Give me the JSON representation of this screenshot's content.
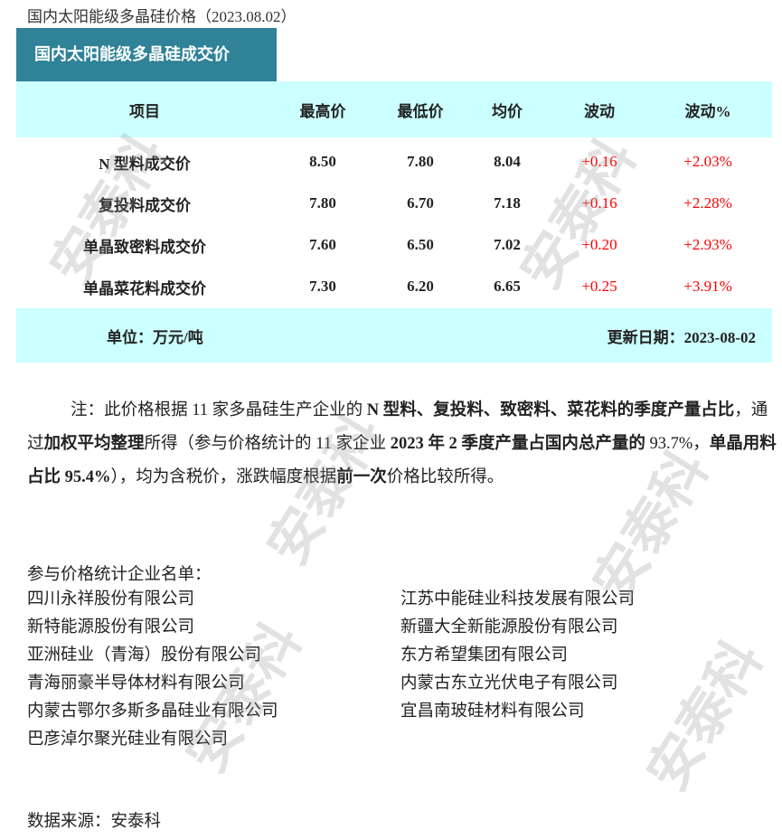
{
  "title": "国内太阳能级多晶硅价格（2023.08.02）",
  "tab_label": "国内太阳能级多晶硅成交价",
  "table": {
    "headers": [
      "项目",
      "最高价",
      "最低价",
      "均价",
      "波动",
      "波动%"
    ],
    "rows": [
      [
        "N 型料成交价",
        "8.50",
        "7.80",
        "8.04",
        "+0.16",
        "+2.03%"
      ],
      [
        "复投料成交价",
        "7.80",
        "6.70",
        "7.18",
        "+0.16",
        "+2.28%"
      ],
      [
        "单晶致密料成交价",
        "7.60",
        "6.50",
        "7.02",
        "+0.20",
        "+2.93%"
      ],
      [
        "单晶菜花料成交价",
        "7.30",
        "6.20",
        "6.65",
        "+0.25",
        "+3.91%"
      ]
    ],
    "unit": "单位：万元/吨",
    "update_date": "更新日期：2023-08-02"
  },
  "colors": {
    "tab": "#2f8298",
    "band": "#ccffff",
    "up": "#ff0000"
  },
  "note": [
    {
      "t": "注：此价格根据 11 家多晶硅生产企业的 ",
      "b": false
    },
    {
      "t": "N 型料、复投料、致密料、菜花料的季度产量占比",
      "b": true
    },
    {
      "t": "，通过",
      "b": false
    },
    {
      "t": "加权平均整理",
      "b": true
    },
    {
      "t": "所得（参与价格统计的 11 家企业 ",
      "b": false
    },
    {
      "t": "2023 年 2 季度产量占国内总产量的",
      "b": true
    },
    {
      "t": " 93.7%，",
      "b": false
    },
    {
      "t": "单晶用料占比 95.4%",
      "b": true
    },
    {
      "t": "），均为含税价，涨跌幅度根据",
      "b": false
    },
    {
      "t": "前一次",
      "b": true
    },
    {
      "t": "价格比较所得。",
      "b": false
    }
  ],
  "companies_title": "参与价格统计企业名单：",
  "companies_left": [
    "四川永祥股份有限公司",
    "新特能源股份有限公司",
    "亚洲硅业（青海）股份有限公司",
    "青海丽豪半导体材料有限公司",
    "内蒙古鄂尔多斯多晶硅业有限公司",
    "巴彦淖尔聚光硅业有限公司"
  ],
  "companies_right": [
    "江苏中能硅业科技发展有限公司",
    "新疆大全新能源股份有限公司",
    "东方希望集团有限公司",
    "内蒙古东立光伏电子有限公司",
    "宜昌南玻硅材料有限公司"
  ],
  "source": "数据来源：安泰科",
  "watermark": "安泰科"
}
